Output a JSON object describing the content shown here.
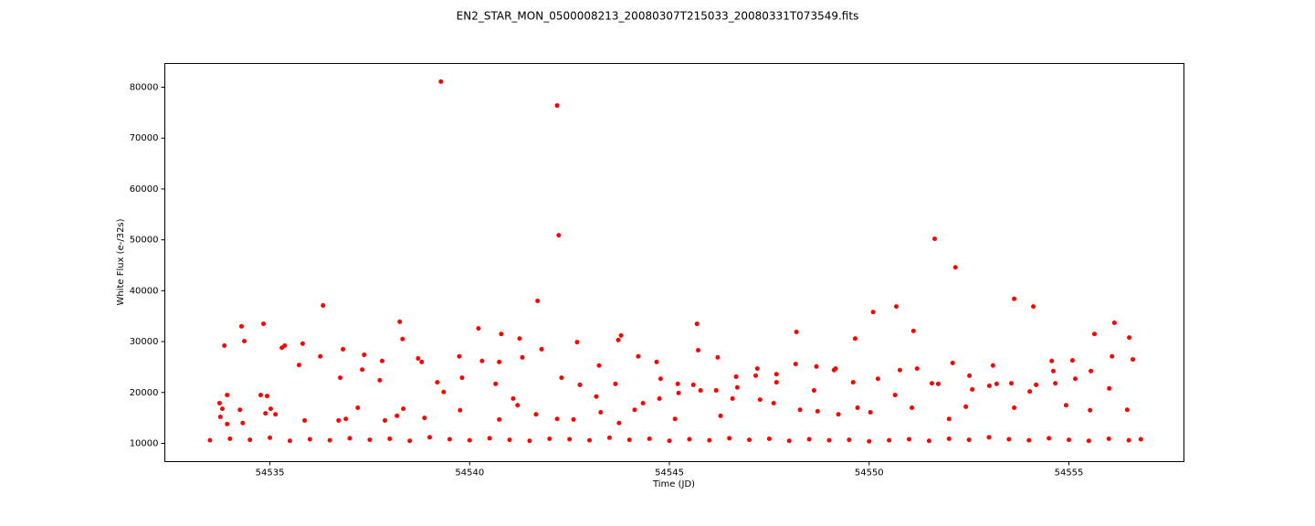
{
  "chart_data": {
    "type": "scatter",
    "title": "EN2_STAR_MON_0500008213_20080307T215033_20080331T073549.fits",
    "x_label": "Time (JD)",
    "y_label": "White Flux (e-/32s)",
    "color": "#ff0000",
    "xlim": [
      54532.37,
      54557.88
    ],
    "ylim": [
      6410,
      84667
    ],
    "xticks": [
      54535,
      54540,
      54545,
      54550,
      54555
    ],
    "yticks": [
      10000,
      20000,
      30000,
      40000,
      50000,
      60000,
      70000,
      80000
    ],
    "x": [
      54533.86,
      54533.74,
      54533.81,
      54533.93,
      54533.93,
      54533.76,
      54534.29,
      54534.36,
      54534.25,
      54534.32,
      54534.84,
      54534.77,
      54534.93,
      54534.89,
      54535.02,
      54535.14,
      54535.3,
      54535.37,
      54536.33,
      54536.26,
      54535.73,
      54535.82,
      54535.87,
      54536.76,
      54536.83,
      54536.72,
      54536.9,
      54537.31,
      54537.36,
      54537.2,
      54537.75,
      54537.81,
      54537.88,
      54538.25,
      54538.32,
      54538.34,
      54538.18,
      54538.71,
      54538.8,
      54538.87,
      54539.19,
      54539.28,
      54539.35,
      54539.74,
      54539.81,
      54539.76,
      54540.22,
      54540.31,
      54540.65,
      54540.74,
      54540.79,
      54540.74,
      54541.09,
      54541.2,
      54541.25,
      54541.32,
      54541.7,
      54541.8,
      54541.66,
      54542.19,
      54542.23,
      54542.3,
      54542.19,
      54542.69,
      54542.76,
      54542.6,
      54543.17,
      54543.24,
      54543.28,
      54543.72,
      54543.79,
      54543.65,
      54543.74,
      54544.22,
      54544.34,
      54544.13,
      54544.68,
      54544.78,
      54544.75,
      54545.21,
      54545.23,
      54545.14,
      54545.69,
      54545.72,
      54545.6,
      54545.78,
      54546.21,
      54546.17,
      54546.28,
      54546.67,
      54546.7,
      54546.58,
      54547.2,
      54547.16,
      54547.27,
      54547.68,
      54547.68,
      54547.61,
      54548.16,
      54548.18,
      54548.27,
      54548.62,
      54548.68,
      54548.71,
      54549.12,
      54549.16,
      54549.23,
      54549.65,
      54549.6,
      54549.71,
      54550.1,
      54550.22,
      54550.03,
      54550.68,
      54550.77,
      54550.65,
      54551.11,
      54551.2,
      54551.07,
      54551.64,
      54551.57,
      54551.73,
      54552.16,
      54552.09,
      54552.0,
      54552.51,
      54552.58,
      54552.42,
      54553.1,
      54553.01,
      54553.19,
      54553.63,
      54553.56,
      54553.63,
      54554.11,
      54554.02,
      54554.18,
      54554.57,
      54554.61,
      54554.66,
      54555.09,
      54555.16,
      54554.93,
      54555.64,
      54555.55,
      54555.53,
      54556.14,
      54556.08,
      54556.01,
      54556.51,
      54556.6,
      54556.46,
      54533.5,
      54534.0,
      54534.5,
      54535.0,
      54535.5,
      54536.0,
      54536.5,
      54537.0,
      54537.5,
      54538.0,
      54538.5,
      54539.0,
      54539.5,
      54540.0,
      54540.5,
      54541.0,
      54541.5,
      54542.0,
      54542.5,
      54543.0,
      54543.5,
      54544.0,
      54544.5,
      54545.0,
      54545.5,
      54546.0,
      54546.5,
      54547.0,
      54547.5,
      54548.0,
      54548.5,
      54549.0,
      54549.5,
      54550.0,
      54550.5,
      54551.0,
      54551.5,
      54552.0,
      54552.5,
      54553.0,
      54553.5,
      54554.0,
      54554.5,
      54555.0,
      54555.5,
      54556.0,
      54556.5,
      54556.8
    ],
    "values": [
      29200,
      17900,
      16800,
      13800,
      19500,
      15200,
      33000,
      30100,
      16600,
      14000,
      33500,
      19500,
      19300,
      15900,
      16800,
      15700,
      28800,
      29200,
      37100,
      27100,
      25400,
      29600,
      14500,
      22900,
      28500,
      14500,
      14800,
      24500,
      27400,
      17000,
      22400,
      26200,
      14500,
      33900,
      30500,
      16800,
      15400,
      26700,
      26000,
      15000,
      22000,
      81100,
      20100,
      27100,
      22900,
      16500,
      32600,
      26200,
      21700,
      26000,
      31500,
      14700,
      18800,
      17500,
      30600,
      26900,
      38000,
      28500,
      15700,
      76400,
      50900,
      22900,
      14800,
      29900,
      21500,
      14700,
      19200,
      25300,
      16100,
      30300,
      31200,
      21700,
      14000,
      27100,
      17900,
      16600,
      26000,
      22700,
      18800,
      21700,
      19900,
      14800,
      33500,
      28300,
      21500,
      20400,
      26900,
      20400,
      15400,
      23100,
      21000,
      18800,
      24700,
      23300,
      18600,
      23600,
      22000,
      17900,
      25600,
      31900,
      16600,
      20400,
      25100,
      16300,
      24400,
      24700,
      15700,
      30600,
      22000,
      17000,
      35800,
      22700,
      16100,
      36900,
      24400,
      19500,
      32100,
      24700,
      17000,
      50200,
      21800,
      21700,
      44600,
      25800,
      14800,
      23300,
      20600,
      17200,
      25300,
      21300,
      21700,
      38400,
      21800,
      17000,
      36900,
      20200,
      21500,
      26200,
      24200,
      21800,
      26300,
      22700,
      17500,
      31500,
      24200,
      16500,
      33700,
      27100,
      20800,
      30800,
      26500,
      16600,
      10600,
      10900,
      10700,
      11100,
      10500,
      10800,
      10600,
      11000,
      10700,
      10900,
      10500,
      11200,
      10800,
      10600,
      11000,
      10700,
      10500,
      10900,
      10800,
      10600,
      11100,
      10700,
      10900,
      10500,
      10800,
      10600,
      11000,
      10700,
      10900,
      10500,
      10800,
      10600,
      10700,
      10400,
      10600,
      10800,
      10500,
      10900,
      10700,
      11200,
      10800,
      10600,
      11000,
      10700,
      10500,
      10900,
      10600,
      10800
    ]
  }
}
